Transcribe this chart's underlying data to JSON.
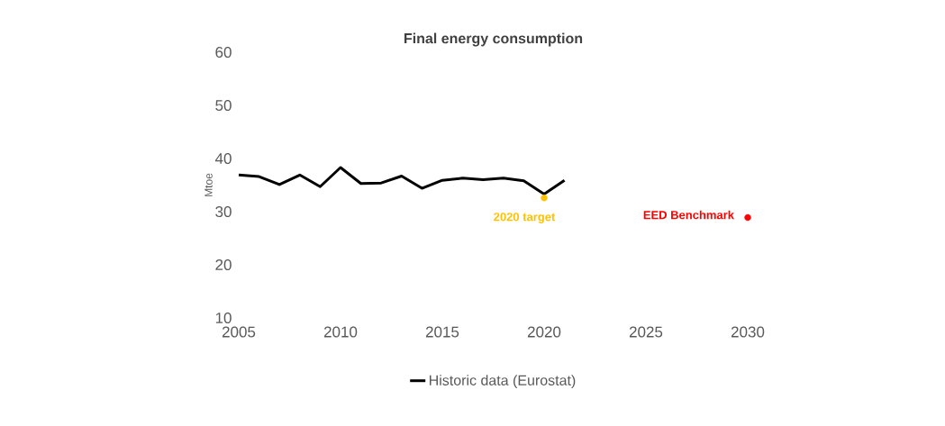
{
  "chart_data": {
    "type": "line",
    "title": "Final energy consumption",
    "ylabel": "Mtoe",
    "x": [
      2005,
      2006,
      2007,
      2008,
      2009,
      2010,
      2011,
      2012,
      2013,
      2014,
      2015,
      2016,
      2017,
      2018,
      2019,
      2020,
      2021
    ],
    "series": [
      {
        "name": "Historic data (Eurostat)",
        "color": "#000000",
        "values": [
          36.9,
          36.6,
          35.1,
          36.9,
          34.7,
          38.3,
          35.3,
          35.4,
          36.7,
          34.4,
          35.9,
          36.3,
          36.0,
          36.3,
          35.8,
          33.3,
          35.9
        ]
      },
      {
        "name": "2020 target",
        "type": "scatter",
        "marker": "circle",
        "color": "#ffc000",
        "x": [
          2020
        ],
        "values": [
          32.6
        ]
      },
      {
        "name": "EED Benchmark",
        "type": "scatter",
        "marker": "circle",
        "color": "#ff0000",
        "x": [
          2030
        ],
        "values": [
          28.9
        ]
      }
    ],
    "xlim": [
      2005,
      2030
    ],
    "xticks": [
      2005,
      2010,
      2015,
      2020,
      2025,
      2030
    ],
    "ylim": [
      10,
      60
    ],
    "yticks": [
      10,
      20,
      30,
      40,
      50,
      60
    ],
    "grid": false,
    "legend": "bottom"
  }
}
